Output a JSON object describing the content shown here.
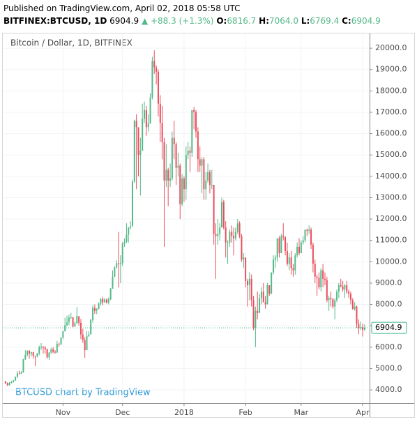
{
  "header": {
    "published": "Published on TradingView.com, April 02, 2018 05:58 UTC",
    "symbol": "BITFINEX:BTCUSD, 1D",
    "last": "6904.9",
    "change": "▲ +88.3 (+1.3%)",
    "ohlc": [
      {
        "label": "O:",
        "value": "6816.7"
      },
      {
        "label": "H:",
        "value": "7064.0"
      },
      {
        "label": "L:",
        "value": "6769.4"
      },
      {
        "label": "C:",
        "value": "6904.9"
      }
    ]
  },
  "chart_data": {
    "type": "candlestick",
    "title": "Bitcoin / Dollar, 1D, BITFINEX",
    "watermark": "BTCUSD chart by TradingView",
    "up_color": "#53b987",
    "down_color": "#eb4d5c",
    "last_price": 6904.9,
    "last_price_color": "#3fb68b",
    "candles": [
      [
        4400,
        4420,
        4280,
        4310
      ],
      [
        4310,
        4350,
        4180,
        4220
      ],
      [
        4220,
        4360,
        4200,
        4320
      ],
      [
        4320,
        4420,
        4300,
        4370
      ],
      [
        4370,
        4470,
        4340,
        4440
      ],
      [
        4440,
        4620,
        4420,
        4610
      ],
      [
        4610,
        4880,
        4560,
        4770
      ],
      [
        4770,
        4900,
        4720,
        4760
      ],
      [
        4760,
        4880,
        4740,
        4830
      ],
      [
        4830,
        5450,
        4800,
        5430
      ],
      [
        5430,
        5860,
        5400,
        5640
      ],
      [
        5640,
        5850,
        5560,
        5830
      ],
      [
        5830,
        5860,
        5450,
        5690
      ],
      [
        5690,
        5780,
        5560,
        5760
      ],
      [
        5760,
        5770,
        5460,
        5590
      ],
      [
        5590,
        5600,
        5110,
        5570
      ],
      [
        5570,
        5730,
        5520,
        5700
      ],
      [
        5700,
        6070,
        5620,
        5990
      ],
      [
        5990,
        6190,
        5880,
        6010
      ],
      [
        6010,
        6060,
        5700,
        5980
      ],
      [
        5980,
        6050,
        5690,
        5900
      ],
      [
        5900,
        5930,
        5460,
        5520
      ],
      [
        5520,
        5770,
        5400,
        5740
      ],
      [
        5740,
        5970,
        5690,
        5890
      ],
      [
        5890,
        6000,
        5710,
        5780
      ],
      [
        5780,
        5860,
        5700,
        5750
      ],
      [
        5750,
        6290,
        5720,
        6150
      ],
      [
        6150,
        6210,
        6020,
        6130
      ],
      [
        6130,
        6470,
        6100,
        6450
      ],
      [
        6450,
        6770,
        6380,
        6740
      ],
      [
        6740,
        7380,
        6740,
        7030
      ],
      [
        7030,
        7470,
        6970,
        7160
      ],
      [
        7160,
        7520,
        7030,
        7380
      ],
      [
        7380,
        7610,
        7320,
        7390
      ],
      [
        7390,
        7420,
        6930,
        6960
      ],
      [
        6960,
        7210,
        6960,
        7120
      ],
      [
        7120,
        7880,
        7080,
        7450
      ],
      [
        7450,
        7450,
        7000,
        7140
      ],
      [
        7140,
        7320,
        6380,
        6590
      ],
      [
        6590,
        6860,
        6200,
        6330
      ],
      [
        6330,
        6460,
        5500,
        5860
      ],
      [
        5860,
        6760,
        5860,
        6530
      ],
      [
        6530,
        6740,
        6480,
        6600
      ],
      [
        6600,
        7330,
        6600,
        7280
      ],
      [
        7280,
        7960,
        7150,
        7840
      ],
      [
        7840,
        8000,
        7560,
        7700
      ],
      [
        7700,
        7830,
        7540,
        7780
      ],
      [
        7780,
        8100,
        7780,
        8040
      ],
      [
        8040,
        8300,
        7950,
        8250
      ],
      [
        8250,
        8360,
        7960,
        8100
      ],
      [
        8100,
        8300,
        8080,
        8230
      ],
      [
        8230,
        8280,
        8030,
        8090
      ],
      [
        8090,
        8330,
        8000,
        8240
      ],
      [
        8240,
        8770,
        8200,
        8740
      ],
      [
        8740,
        9600,
        8740,
        9300
      ],
      [
        9300,
        9800,
        9280,
        9730
      ],
      [
        9730,
        10070,
        9680,
        9930
      ],
      [
        9930,
        11400,
        8800,
        9880
      ],
      [
        9880,
        10300,
        9000,
        9930
      ],
      [
        9930,
        10920,
        9800,
        10850
      ],
      [
        10850,
        11100,
        10700,
        10930
      ],
      [
        10930,
        11800,
        10880,
        11270
      ],
      [
        11270,
        11620,
        10900,
        11600
      ],
      [
        11600,
        11900,
        11520,
        11660
      ],
      [
        11660,
        13850,
        11660,
        13750
      ],
      [
        13750,
        16660,
        13700,
        16600
      ],
      [
        16600,
        16900,
        13400,
        16300
      ],
      [
        16300,
        16300,
        14000,
        15000
      ],
      [
        15000,
        15800,
        13100,
        15200
      ],
      [
        15200,
        17400,
        15200,
        16700
      ],
      [
        16700,
        17500,
        16500,
        17100
      ],
      [
        17100,
        17300,
        15900,
        16300
      ],
      [
        16300,
        16900,
        16100,
        16500
      ],
      [
        16500,
        17900,
        16450,
        17700
      ],
      [
        17700,
        19600,
        17600,
        19400
      ],
      [
        19400,
        19900,
        18800,
        19100
      ],
      [
        19100,
        19200,
        18300,
        18900
      ],
      [
        18900,
        19000,
        16800,
        17400
      ],
      [
        17400,
        17800,
        15600,
        16500
      ],
      [
        16500,
        17300,
        14800,
        15600
      ],
      [
        15600,
        15800,
        10700,
        13800
      ],
      [
        13800,
        15500,
        13500,
        14300
      ],
      [
        14300,
        14400,
        12600,
        13800
      ],
      [
        13800,
        14600,
        13500,
        13900
      ],
      [
        13900,
        16100,
        13800,
        15800
      ],
      [
        15800,
        16600,
        14800,
        15500
      ],
      [
        15500,
        15600,
        13600,
        14400
      ],
      [
        14400,
        15100,
        14000,
        14500
      ],
      [
        14500,
        14600,
        12000,
        12700
      ],
      [
        12700,
        14100,
        12600,
        13900
      ],
      [
        13900,
        14000,
        12800,
        13400
      ],
      [
        13400,
        15400,
        12900,
        15000
      ],
      [
        15000,
        15600,
        14800,
        15200
      ],
      [
        15200,
        15400,
        14200,
        15100
      ],
      [
        15100,
        17100,
        14900,
        17100
      ],
      [
        17100,
        17250,
        16200,
        17000
      ],
      [
        17000,
        17100,
        15800,
        16100
      ],
      [
        16100,
        16300,
        14200,
        14800
      ],
      [
        14800,
        15400,
        14200,
        14500
      ],
      [
        14500,
        14900,
        13200,
        14800
      ],
      [
        14800,
        14900,
        12900,
        13400
      ],
      [
        13400,
        14200,
        12900,
        13800
      ],
      [
        13800,
        14600,
        13700,
        14200
      ],
      [
        14200,
        14300,
        13200,
        13600
      ],
      [
        13600,
        14300,
        13400,
        13600
      ],
      [
        13600,
        13600,
        10800,
        11300
      ],
      [
        11300,
        11800,
        9200,
        11200
      ],
      [
        11200,
        12000,
        10800,
        11300
      ],
      [
        11300,
        11800,
        11000,
        11600
      ],
      [
        11600,
        13000,
        11600,
        12800
      ],
      [
        12800,
        12900,
        11500,
        11600
      ],
      [
        11600,
        11900,
        10200,
        10900
      ],
      [
        10900,
        11000,
        9900,
        10900
      ],
      [
        10900,
        11500,
        10700,
        11400
      ],
      [
        11400,
        11700,
        10900,
        11200
      ],
      [
        11200,
        11600,
        10300,
        11100
      ],
      [
        11100,
        11600,
        11000,
        11400
      ],
      [
        11400,
        12000,
        11300,
        11800
      ],
      [
        11800,
        11900,
        11100,
        11200
      ],
      [
        11200,
        11300,
        10000,
        10100
      ],
      [
        10100,
        10400,
        9700,
        10200
      ],
      [
        10200,
        10200,
        8800,
        9100
      ],
      [
        9100,
        9200,
        7900,
        8900
      ],
      [
        8900,
        9500,
        8200,
        9200
      ],
      [
        9200,
        9400,
        7900,
        8200
      ],
      [
        8200,
        8400,
        6800,
        6900
      ],
      [
        6900,
        7900,
        6000,
        7700
      ],
      [
        7700,
        8600,
        7300,
        7600
      ],
      [
        7600,
        8500,
        7600,
        8300
      ],
      [
        8300,
        8800,
        8000,
        8600
      ],
      [
        8600,
        9000,
        8100,
        8100
      ],
      [
        8100,
        8400,
        7800,
        8000
      ],
      [
        8000,
        9000,
        8000,
        8900
      ],
      [
        8900,
        8900,
        8400,
        8500
      ],
      [
        8500,
        9500,
        8500,
        9500
      ],
      [
        9500,
        10300,
        9400,
        10100
      ],
      [
        10100,
        10300,
        9700,
        10200
      ],
      [
        10200,
        11100,
        10000,
        11100
      ],
      [
        11100,
        11200,
        10200,
        10400
      ],
      [
        10400,
        11300,
        10400,
        11200
      ],
      [
        11200,
        11800,
        11000,
        11150
      ],
      [
        11150,
        11200,
        10300,
        10500
      ],
      [
        10500,
        10900,
        9800,
        9900
      ],
      [
        9900,
        10400,
        9600,
        10200
      ],
      [
        10200,
        10500,
        9400,
        9700
      ],
      [
        9700,
        9900,
        9300,
        9600
      ],
      [
        9600,
        10400,
        9400,
        10300
      ],
      [
        10300,
        10900,
        10200,
        10700
      ],
      [
        10700,
        11100,
        10300,
        10400
      ],
      [
        10400,
        11000,
        10400,
        10900
      ],
      [
        10900,
        11200,
        10800,
        11000
      ],
      [
        11000,
        11500,
        10900,
        11500
      ],
      [
        11500,
        11550,
        11200,
        11450
      ],
      [
        11450,
        11700,
        11300,
        11500
      ],
      [
        11500,
        11600,
        10600,
        10800
      ],
      [
        10800,
        10900,
        9500,
        9900
      ],
      [
        9900,
        10100,
        9000,
        9300
      ],
      [
        9300,
        9400,
        8400,
        9250
      ],
      [
        9250,
        9500,
        8700,
        8800
      ],
      [
        8800,
        9700,
        8600,
        9600
      ],
      [
        9600,
        9900,
        8800,
        9200
      ],
      [
        9200,
        9500,
        8900,
        9150
      ],
      [
        9150,
        9300,
        8100,
        8200
      ],
      [
        8200,
        8400,
        7700,
        8300
      ],
      [
        8300,
        8600,
        7900,
        8250
      ],
      [
        8250,
        8300,
        7800,
        7900
      ],
      [
        7900,
        8300,
        7300,
        8200
      ],
      [
        8200,
        8700,
        8100,
        8600
      ],
      [
        8600,
        9000,
        8300,
        8900
      ],
      [
        8900,
        9200,
        8800,
        8850
      ],
      [
        8850,
        9100,
        8600,
        8700
      ],
      [
        8700,
        8950,
        8300,
        8900
      ],
      [
        8900,
        9100,
        8500,
        8600
      ],
      [
        8600,
        8700,
        8300,
        8500
      ],
      [
        8500,
        8600,
        8000,
        8200
      ],
      [
        8200,
        8300,
        7750,
        7790
      ],
      [
        7790,
        8100,
        7700,
        7900
      ],
      [
        7900,
        7950,
        6900,
        7100
      ],
      [
        7100,
        7300,
        6600,
        6900
      ],
      [
        6900,
        7200,
        6800,
        6930
      ],
      [
        6930,
        7100,
        6500,
        6816.7
      ],
      [
        6816.7,
        7064.0,
        6769.4,
        6904.9
      ]
    ],
    "xlim": [
      -1,
      183.5
    ],
    "xticks": [
      {
        "value": 29,
        "label": "Nov"
      },
      {
        "value": 59,
        "label": "Dec"
      },
      {
        "value": 90,
        "label": "2018"
      },
      {
        "value": 121,
        "label": "Feb"
      },
      {
        "value": 149,
        "label": "Mar"
      },
      {
        "value": 180,
        "label": "Apr"
      }
    ],
    "ylim": [
      3380,
      20690
    ],
    "yticks": [
      {
        "value": 4000,
        "label": "4000.0"
      },
      {
        "value": 5000,
        "label": "5000.0"
      },
      {
        "value": 6000,
        "label": "6000.0"
      },
      {
        "value": 7000,
        "label": "7000.0"
      },
      {
        "value": 8000,
        "label": "8000.0"
      },
      {
        "value": 9000,
        "label": "9000.0"
      },
      {
        "value": 10000,
        "label": "10000.0"
      },
      {
        "value": 11000,
        "label": "11000.0"
      },
      {
        "value": 12000,
        "label": "12000.0"
      },
      {
        "value": 13000,
        "label": "13000.0"
      },
      {
        "value": 14000,
        "label": "14000.0"
      },
      {
        "value": 15000,
        "label": "15000.0"
      },
      {
        "value": 16000,
        "label": "16000.0"
      },
      {
        "value": 17000,
        "label": "17000.0"
      },
      {
        "value": 18000,
        "label": "18000.0"
      },
      {
        "value": 19000,
        "label": "19000.0"
      },
      {
        "value": 20000,
        "label": "20000.0"
      }
    ],
    "grid": true
  }
}
